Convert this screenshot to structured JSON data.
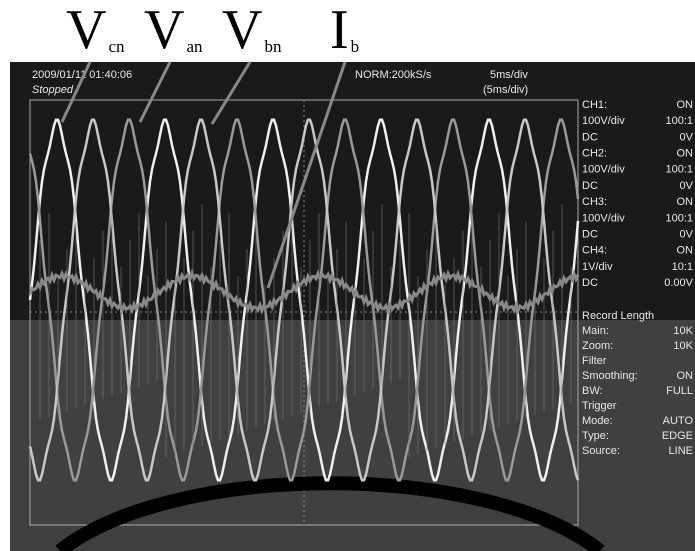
{
  "annotations": [
    {
      "main": "V",
      "sub": "cn"
    },
    {
      "main": "V",
      "sub": "an"
    },
    {
      "main": "V",
      "sub": "bn"
    },
    {
      "main": "I",
      "sub": "b"
    }
  ],
  "screen": {
    "timestamp": "2009/01/11 01:40:06",
    "status": "Stopped",
    "sampling": "NORM:200kS/s",
    "timebase": "5ms/div",
    "zoom_timebase": "(5ms/div)",
    "panel": [
      [
        "CH1:",
        "ON"
      ],
      [
        "100V/div",
        "100:1"
      ],
      [
        "DC",
        "0V"
      ],
      [
        "CH2:",
        "ON"
      ],
      [
        "100V/div",
        "100:1"
      ],
      [
        "DC",
        "0V"
      ],
      [
        "CH3:",
        "ON"
      ],
      [
        "100V/div",
        "100:1"
      ],
      [
        "DC",
        "0V"
      ],
      [
        "CH4:",
        "ON"
      ],
      [
        "1V/div",
        "10:1"
      ],
      [
        "DC",
        "0.00V"
      ],
      [
        "Record Length"
      ],
      [
        "Main:",
        "10K"
      ],
      [
        "Zoom:",
        "10K"
      ],
      [
        "Filter"
      ],
      [
        "Smoothing:",
        "ON"
      ],
      [
        "BW:",
        "FULL"
      ],
      [
        "Trigger"
      ],
      [
        "Mode:",
        "AUTO"
      ],
      [
        "Type:",
        "EDGE"
      ],
      [
        "Source:",
        "LINE"
      ]
    ]
  }
}
